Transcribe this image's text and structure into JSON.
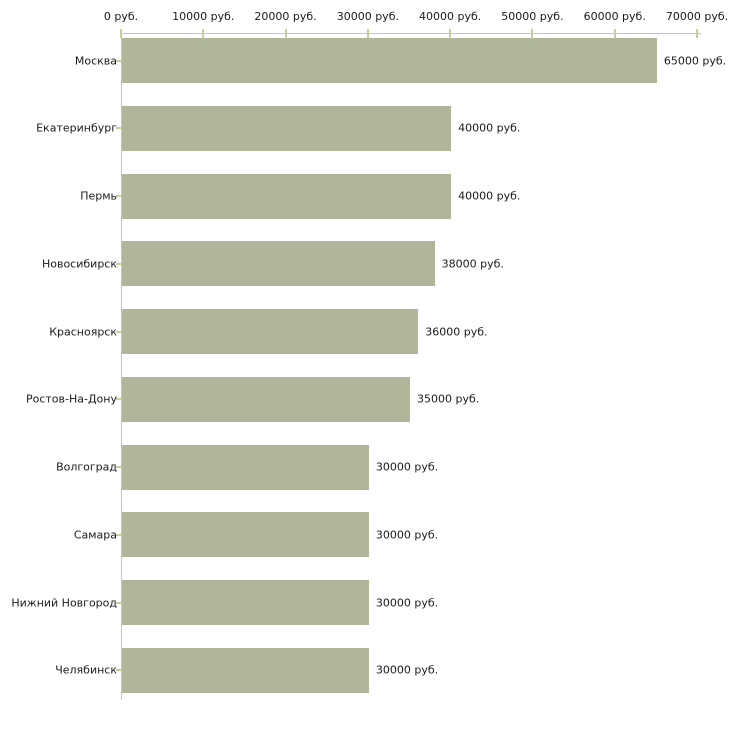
{
  "chart_data": {
    "type": "bar",
    "orientation": "horizontal",
    "title": "",
    "categories": [
      "Москва",
      "Екатеринбург",
      "Пермь",
      "Новосибирск",
      "Красноярск",
      "Ростов-На-Дону",
      "Волгоград",
      "Самара",
      "Нижний Новгород",
      "Челябинск"
    ],
    "values": [
      65000,
      40000,
      40000,
      38000,
      36000,
      35000,
      30000,
      30000,
      30000,
      30000
    ],
    "value_labels": [
      "65000 руб.",
      "40000 руб.",
      "40000 руб.",
      "38000 руб.",
      "36000 руб.",
      "35000 руб.",
      "30000 руб.",
      "30000 руб.",
      "30000 руб.",
      "30000 руб."
    ],
    "x_axis": {
      "max": 70000,
      "ticks": [
        0,
        10000,
        20000,
        30000,
        40000,
        50000,
        60000,
        70000
      ],
      "tick_labels": [
        "0 руб.",
        "10000 руб.",
        "20000 руб.",
        "30000 руб.",
        "40000 руб.",
        "50000 руб.",
        "60000 руб.",
        "70000 руб."
      ]
    },
    "legend": null,
    "grid": false,
    "colors": {
      "bar": "#afb69a",
      "axis_line": "#c2c2c2",
      "tick_mark": "#cbcb9e",
      "text": "#1b1b1b",
      "background": "#ffffff"
    }
  }
}
